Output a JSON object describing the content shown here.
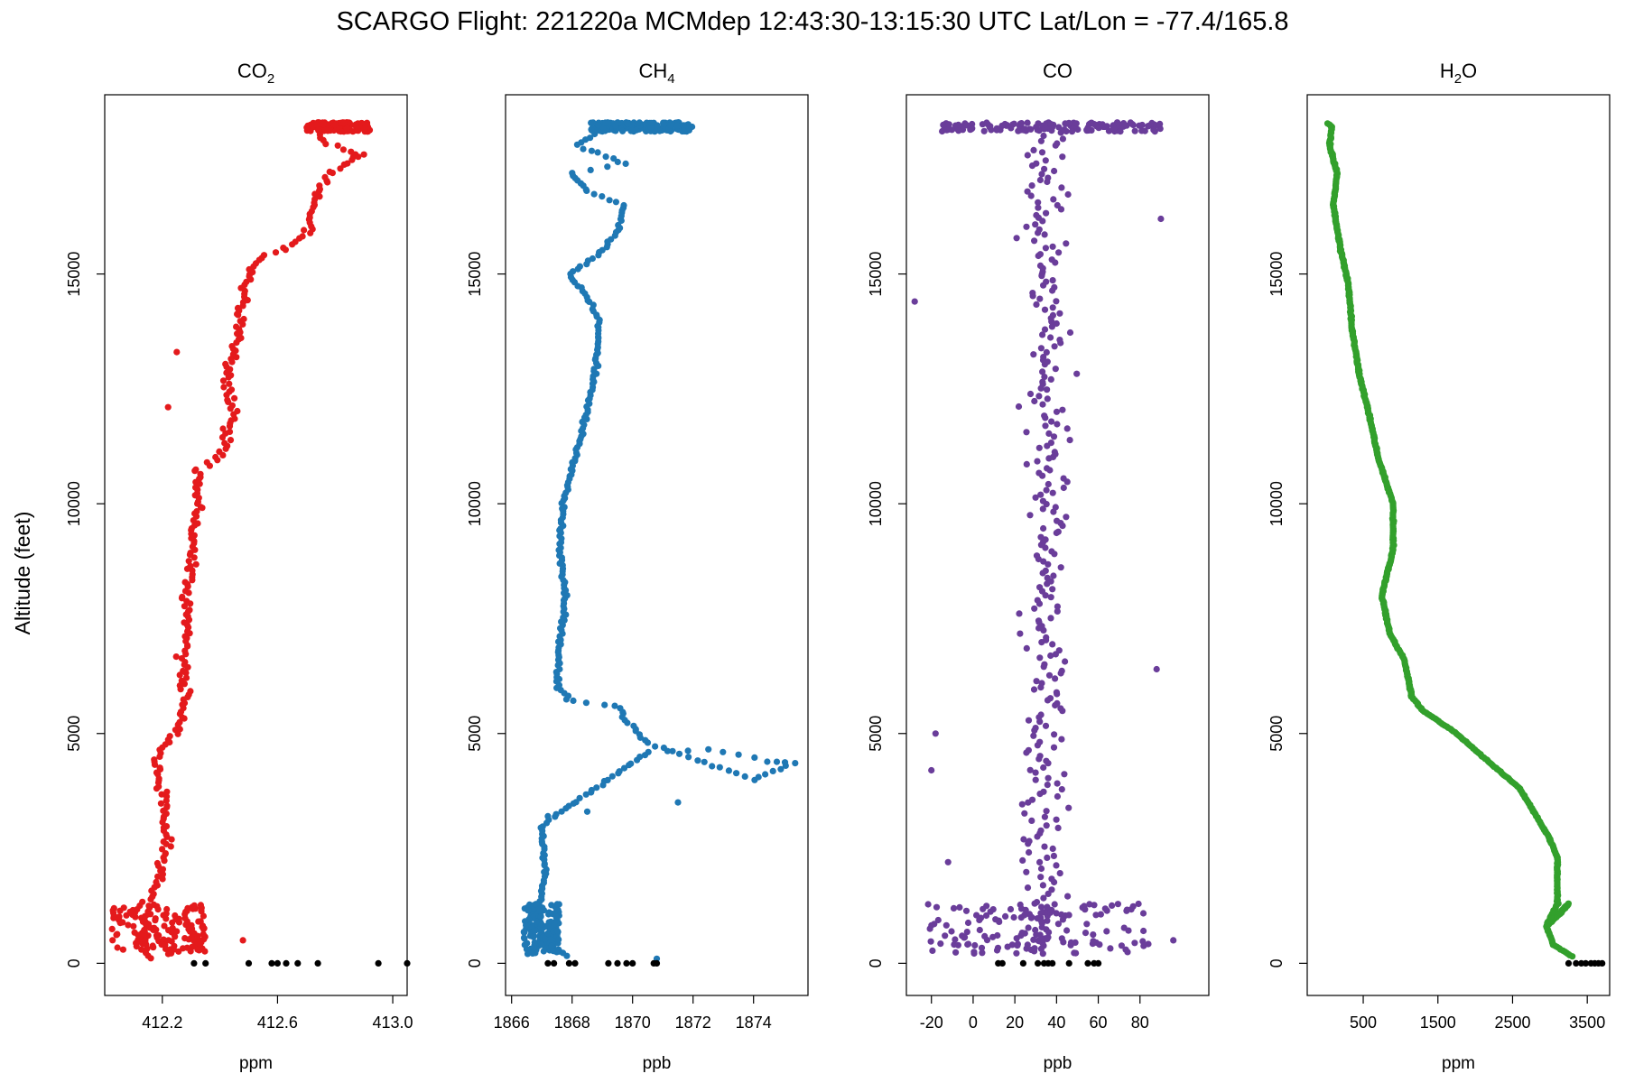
{
  "title": "SCARGO Flight: 221220a  MCMdep  12:43:30-13:15:30 UTC  Lat/Lon = -77.4/165.8",
  "ylabel": "Altitude (feet)",
  "ground_color": "#000000",
  "chart_data": [
    {
      "type": "scatter",
      "title_main": "CO",
      "title_sub": "2",
      "xlabel": "ppm",
      "ylabel": "Altitude (feet)",
      "color": "#E41A1C",
      "xlim": [
        412.0,
        413.05
      ],
      "ylim": [
        -700,
        18900
      ],
      "xticks": [
        412.2,
        412.6,
        413.0
      ],
      "xtick_labels": [
        "412.2",
        "412.6",
        "413.0"
      ],
      "yticks": [
        0,
        5000,
        10000,
        15000
      ],
      "ytick_labels": [
        "0",
        "5000",
        "10000",
        "15000"
      ],
      "profile": [
        [
          412.15,
          100
        ],
        [
          412.12,
          300
        ],
        [
          412.13,
          600
        ],
        [
          412.14,
          900
        ],
        [
          412.15,
          1200
        ],
        [
          412.18,
          1700
        ],
        [
          412.2,
          2300
        ],
        [
          412.22,
          3000
        ],
        [
          412.2,
          3800
        ],
        [
          412.17,
          4500
        ],
        [
          412.24,
          5000
        ],
        [
          412.29,
          5800
        ],
        [
          412.27,
          6500
        ],
        [
          412.29,
          7300
        ],
        [
          412.28,
          8000
        ],
        [
          412.31,
          9000
        ],
        [
          412.33,
          10000
        ],
        [
          412.32,
          10700
        ],
        [
          412.42,
          11200
        ],
        [
          412.45,
          12000
        ],
        [
          412.42,
          12800
        ],
        [
          412.46,
          13500
        ],
        [
          412.47,
          14200
        ],
        [
          412.5,
          15000
        ],
        [
          412.56,
          15400
        ],
        [
          412.68,
          15700
        ],
        [
          412.72,
          16300
        ],
        [
          412.74,
          16800
        ],
        [
          412.8,
          17300
        ],
        [
          412.88,
          17600
        ],
        [
          412.74,
          17900
        ],
        [
          412.75,
          18100
        ],
        [
          412.78,
          18200
        ]
      ],
      "jitter": 0.035,
      "dense": [
        {
          "x": [
            412.02,
            412.35
          ],
          "y": [
            200,
            1300
          ]
        },
        {
          "x": [
            412.7,
            412.92
          ],
          "y": [
            18100,
            18300
          ]
        }
      ],
      "outliers": [
        [
          412.25,
          13300
        ],
        [
          412.48,
          500
        ],
        [
          412.88,
          17550
        ],
        [
          412.9,
          17600
        ],
        [
          412.22,
          12100
        ]
      ],
      "ground": [
        412.31,
        412.35,
        412.5,
        412.58,
        412.6,
        412.63,
        412.67,
        412.74,
        412.95,
        413.05
      ]
    },
    {
      "type": "scatter",
      "title_main": "CH",
      "title_sub": "4",
      "xlabel": "ppb",
      "ylabel": "Altitude (feet)",
      "color": "#1F78B4",
      "xlim": [
        1865.8,
        1875.8
      ],
      "ylim": [
        -700,
        18900
      ],
      "xticks": [
        1866,
        1868,
        1870,
        1872,
        1874
      ],
      "xtick_labels": [
        "1866",
        "1868",
        "1870",
        "1872",
        "1874"
      ],
      "yticks": [
        0,
        5000,
        10000,
        15000
      ],
      "ytick_labels": [
        "0",
        "5000",
        "10000",
        "15000"
      ],
      "profile": [
        [
          1867.8,
          150
        ],
        [
          1867.0,
          500
        ],
        [
          1866.9,
          1100
        ],
        [
          1867.1,
          2000
        ],
        [
          1867.0,
          3000
        ],
        [
          1870.5,
          4600
        ],
        [
          1872.5,
          4650
        ],
        [
          1874.5,
          4400
        ],
        [
          1875.3,
          4350
        ],
        [
          1874.0,
          4000
        ],
        [
          1870.5,
          4800
        ],
        [
          1869.8,
          5300
        ],
        [
          1869.5,
          5600
        ],
        [
          1868.0,
          5700
        ],
        [
          1867.5,
          6000
        ],
        [
          1867.6,
          7000
        ],
        [
          1867.8,
          8000
        ],
        [
          1867.6,
          9000
        ],
        [
          1867.7,
          10000
        ],
        [
          1868.1,
          11000
        ],
        [
          1868.5,
          12000
        ],
        [
          1868.8,
          13000
        ],
        [
          1868.9,
          14000
        ],
        [
          1868.5,
          14500
        ],
        [
          1867.9,
          15000
        ],
        [
          1868.8,
          15400
        ],
        [
          1869.5,
          15900
        ],
        [
          1869.7,
          16500
        ],
        [
          1868.5,
          16800
        ],
        [
          1868.0,
          17200
        ],
        [
          1869.8,
          17400
        ],
        [
          1868.2,
          17800
        ],
        [
          1868.8,
          18100
        ],
        [
          1870.0,
          18200
        ],
        [
          1871.8,
          18200
        ]
      ],
      "jitter": 0.12,
      "dense": [
        {
          "x": [
            1866.4,
            1867.6
          ],
          "y": [
            200,
            1300
          ]
        },
        {
          "x": [
            1868.6,
            1872.0
          ],
          "y": [
            18100,
            18300
          ]
        }
      ],
      "outliers": [
        [
          1871.5,
          3500
        ],
        [
          1868.5,
          3300
        ],
        [
          1870.8,
          100
        ],
        [
          1867.2,
          3200
        ]
      ],
      "ground": [
        1867.2,
        1867.4,
        1867.9,
        1868.1,
        1869.2,
        1869.5,
        1869.8,
        1870.0,
        1870.7,
        1870.8
      ]
    },
    {
      "type": "scatter",
      "title_main": "CO",
      "title_sub": "",
      "xlabel": "ppb",
      "ylabel": "Altitude (feet)",
      "color": "#6A3D9A",
      "xlim": [
        -32,
        113
      ],
      "ylim": [
        -700,
        18900
      ],
      "xticks": [
        -20,
        0,
        20,
        40,
        60,
        80
      ],
      "xtick_labels": [
        "-20",
        "0",
        "20",
        "40",
        "60",
        "80"
      ],
      "yticks": [
        0,
        5000,
        10000,
        15000
      ],
      "ytick_labels": [
        "0",
        "5000",
        "10000",
        "15000"
      ],
      "profile": [
        [
          35,
          200
        ],
        [
          35,
          2000
        ],
        [
          35,
          5000
        ],
        [
          35,
          10000
        ],
        [
          35,
          15000
        ],
        [
          35,
          18200
        ]
      ],
      "jitter": 18,
      "dense": [
        {
          "x": [
            -22,
            85
          ],
          "y": [
            200,
            1300
          ]
        },
        {
          "x": [
            -15,
            90
          ],
          "y": [
            18100,
            18300
          ]
        }
      ],
      "outliers": [
        [
          -28,
          14400
        ],
        [
          88,
          6400
        ],
        [
          90,
          16200
        ],
        [
          -18,
          5000
        ],
        [
          -20,
          4200
        ],
        [
          -12,
          2200
        ],
        [
          96,
          500
        ]
      ],
      "ground": [
        12,
        14,
        24,
        31,
        34,
        36,
        38,
        46,
        55,
        58,
        60
      ]
    },
    {
      "type": "scatter",
      "title_main": "H",
      "title_sub": "2",
      "title_tail": "O",
      "xlabel": "ppm",
      "ylabel": "Altitude (feet)",
      "color": "#33A02C",
      "xlim": [
        -250,
        3800
      ],
      "ylim": [
        -700,
        18900
      ],
      "xticks": [
        500,
        1500,
        2500,
        3500
      ],
      "xtick_labels": [
        "500",
        "1500",
        "2500",
        "3500"
      ],
      "yticks": [
        0,
        5000,
        10000,
        15000
      ],
      "ytick_labels": [
        "0",
        "5000",
        "10000",
        "15000"
      ],
      "profile": [
        [
          3300,
          150
        ],
        [
          3050,
          400
        ],
        [
          2950,
          800
        ],
        [
          3150,
          1100
        ],
        [
          3250,
          1300
        ],
        [
          2950,
          800
        ],
        [
          3100,
          1300
        ],
        [
          3100,
          2300
        ],
        [
          3000,
          2700
        ],
        [
          2600,
          3800
        ],
        [
          2100,
          4500
        ],
        [
          1750,
          5000
        ],
        [
          1300,
          5500
        ],
        [
          1150,
          5800
        ],
        [
          1050,
          6600
        ],
        [
          850,
          7200
        ],
        [
          750,
          8000
        ],
        [
          900,
          9000
        ],
        [
          900,
          10000
        ],
        [
          700,
          11000
        ],
        [
          600,
          11800
        ],
        [
          450,
          12800
        ],
        [
          350,
          13800
        ],
        [
          300,
          14800
        ],
        [
          200,
          15500
        ],
        [
          100,
          16500
        ],
        [
          150,
          17200
        ],
        [
          50,
          17800
        ],
        [
          80,
          18200
        ],
        [
          0,
          18300
        ]
      ],
      "jitter": 0,
      "dense": [],
      "outliers": [],
      "ground": [
        3250,
        3350,
        3420,
        3480,
        3550,
        3600,
        3650,
        3700
      ]
    }
  ]
}
